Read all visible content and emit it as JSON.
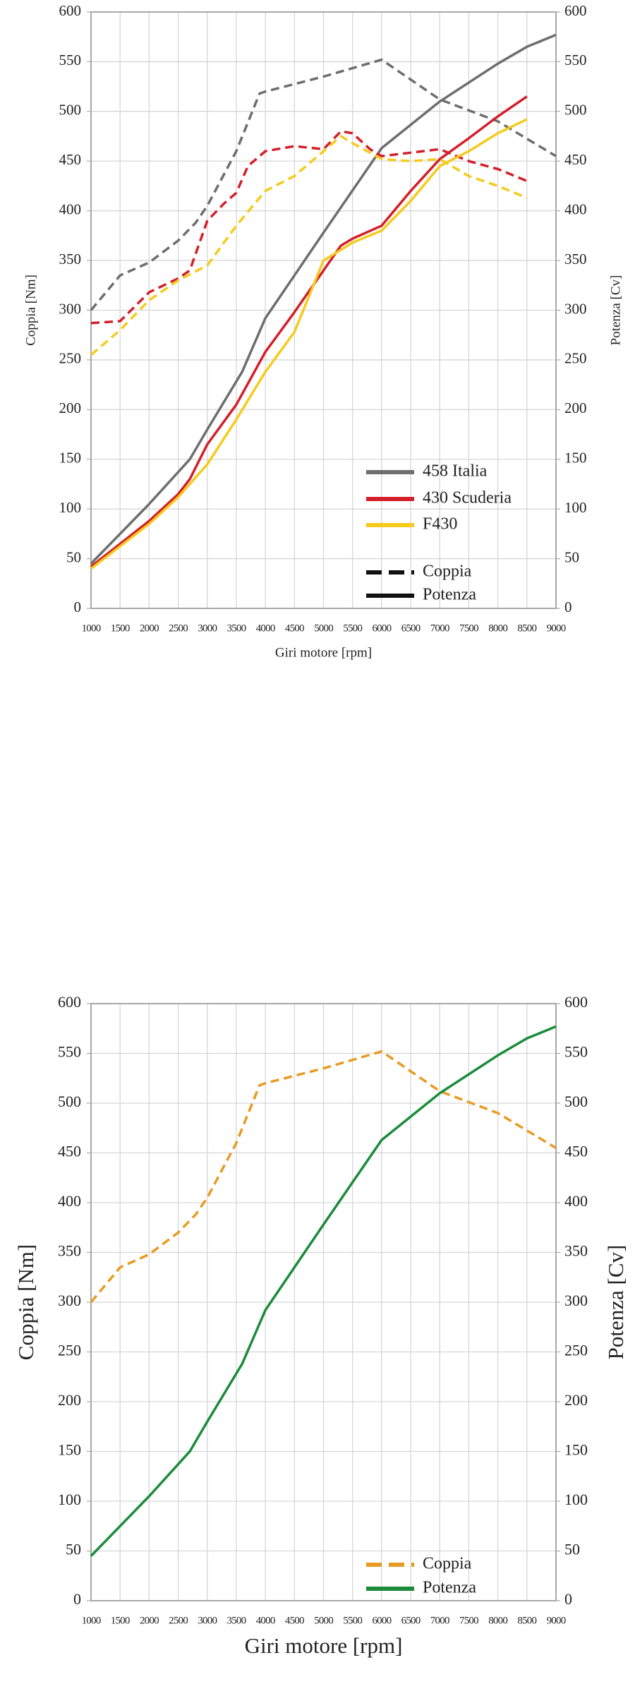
{
  "chart_data": [
    {
      "type": "line",
      "xlabel": "Giri motore [rpm]",
      "ylabel": "Coppia [Nm]",
      "y2label": "Potenza [Cv]",
      "xlim": [
        1000,
        9000
      ],
      "xticks": [
        1000,
        1500,
        2000,
        2500,
        3000,
        3500,
        4000,
        4500,
        5000,
        5500,
        6000,
        6500,
        7000,
        7500,
        8000,
        8500,
        9000
      ],
      "ylim": [
        0,
        600
      ],
      "yticks": [
        0,
        50,
        100,
        150,
        200,
        250,
        300,
        350,
        400,
        450,
        500,
        550,
        600
      ],
      "y2lim": [
        0,
        600
      ],
      "y2ticks": [
        0,
        50,
        100,
        150,
        200,
        250,
        300,
        350,
        400,
        450,
        500,
        550,
        600
      ],
      "grid": true,
      "legend": "lower right",
      "cars": [
        {
          "name": "458 Italia",
          "color": "#6e6e6e"
        },
        {
          "name": "430 Scuderia",
          "color": "#d41f2a"
        },
        {
          "name": "F430",
          "color": "#f5cb1c"
        }
      ],
      "styles": [
        {
          "name": "Coppia",
          "dash": "dashed"
        },
        {
          "name": "Potenza",
          "dash": "solid"
        }
      ],
      "series": [
        {
          "car": 0,
          "style": 0,
          "axis": "y",
          "x": [
            1000,
            1500,
            2000,
            2500,
            2800,
            3000,
            3500,
            3900,
            4000,
            5000,
            6000,
            7000,
            8000,
            9000
          ],
          "values": [
            300,
            335,
            348,
            370,
            388,
            405,
            460,
            518,
            520,
            535,
            552,
            512,
            490,
            455
          ]
        },
        {
          "car": 0,
          "style": 1,
          "axis": "y2",
          "x": [
            1000,
            2000,
            2700,
            3000,
            3600,
            4000,
            5000,
            6000,
            7000,
            8000,
            8500,
            9000
          ],
          "values": [
            45,
            105,
            150,
            180,
            238,
            292,
            378,
            463,
            510,
            548,
            565,
            577
          ]
        },
        {
          "car": 1,
          "style": 0,
          "axis": "y",
          "x": [
            1000,
            1500,
            2000,
            2500,
            2700,
            3000,
            3300,
            3500,
            3700,
            4000,
            4500,
            5000,
            5300,
            5500,
            5800,
            6000,
            7000,
            7500,
            8000,
            8500
          ],
          "values": [
            287,
            289,
            318,
            332,
            340,
            390,
            408,
            418,
            445,
            460,
            465,
            462,
            480,
            478,
            462,
            455,
            462,
            450,
            442,
            430
          ]
        },
        {
          "car": 1,
          "style": 1,
          "axis": "y2",
          "x": [
            1000,
            1500,
            2000,
            2500,
            2700,
            3000,
            3500,
            4000,
            4500,
            5000,
            5300,
            5500,
            6000,
            6500,
            7000,
            7500,
            8000,
            8500
          ],
          "values": [
            42,
            65,
            88,
            115,
            130,
            165,
            205,
            258,
            298,
            340,
            365,
            372,
            385,
            420,
            452,
            473,
            495,
            515
          ]
        },
        {
          "car": 2,
          "style": 0,
          "axis": "y",
          "x": [
            1000,
            1500,
            2000,
            2500,
            3000,
            3500,
            4000,
            4500,
            5000,
            5300,
            5500,
            6000,
            6500,
            7000,
            7500,
            8000,
            8500
          ],
          "values": [
            255,
            280,
            310,
            330,
            345,
            385,
            420,
            435,
            460,
            475,
            468,
            452,
            450,
            452,
            435,
            425,
            413
          ]
        },
        {
          "car": 2,
          "style": 1,
          "axis": "y2",
          "x": [
            1000,
            2000,
            2500,
            3000,
            3500,
            4000,
            4500,
            5000,
            5500,
            6000,
            6500,
            7000,
            7500,
            8000,
            8500
          ],
          "values": [
            40,
            85,
            112,
            145,
            190,
            238,
            278,
            350,
            368,
            380,
            410,
            445,
            460,
            478,
            492
          ]
        }
      ]
    },
    {
      "type": "line",
      "xlabel": "Giri motore [rpm]",
      "ylabel": "Coppia [Nm]",
      "y2label": "Potenza [Cv]",
      "xlim": [
        1000,
        9000
      ],
      "xticks": [
        1000,
        1500,
        2000,
        2500,
        3000,
        3500,
        4000,
        4500,
        5000,
        5500,
        6000,
        6500,
        7000,
        7500,
        8000,
        8500,
        9000
      ],
      "ylim": [
        0,
        600
      ],
      "yticks": [
        0,
        50,
        100,
        150,
        200,
        250,
        300,
        350,
        400,
        450,
        500,
        550,
        600
      ],
      "y2lim": [
        0,
        600
      ],
      "y2ticks": [
        0,
        50,
        100,
        150,
        200,
        250,
        300,
        350,
        400,
        450,
        500,
        550,
        600
      ],
      "grid": true,
      "legend": "lower right",
      "series": [
        {
          "name": "Coppia",
          "color": "#e89b22",
          "dash": "dashed",
          "axis": "y",
          "x": [
            1000,
            1500,
            2000,
            2500,
            2800,
            3000,
            3500,
            3900,
            4000,
            5000,
            6000,
            7000,
            8000,
            9000
          ],
          "values": [
            300,
            335,
            348,
            370,
            388,
            405,
            460,
            518,
            520,
            535,
            552,
            512,
            490,
            455
          ]
        },
        {
          "name": "Potenza",
          "color": "#1b8c3a",
          "dash": "solid",
          "axis": "y2",
          "x": [
            1000,
            2000,
            2700,
            3000,
            3600,
            4000,
            5000,
            6000,
            7000,
            8000,
            8500,
            9000
          ],
          "values": [
            45,
            105,
            150,
            180,
            238,
            292,
            378,
            463,
            510,
            548,
            565,
            577
          ]
        }
      ]
    }
  ]
}
